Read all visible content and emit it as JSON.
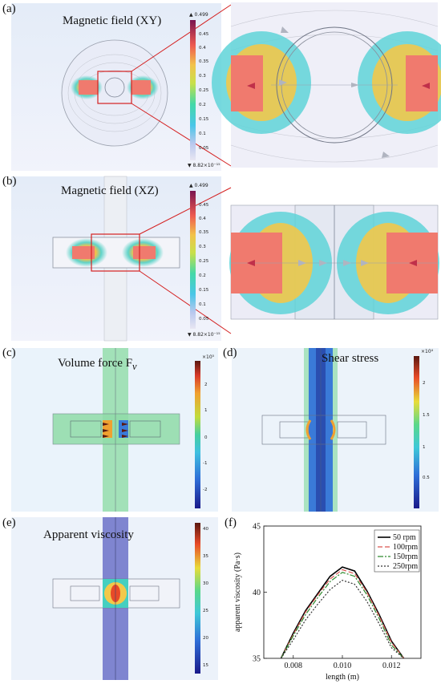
{
  "panels": {
    "a": {
      "label": "(a)",
      "title": "Magnetic field (XY)",
      "colorbar": {
        "max_label": "▲ 0.499",
        "min_label": "▼ 8.82×10⁻¹⁵",
        "ticks": [
          "0.45",
          "0.4",
          "0.35",
          "0.3",
          "0.25",
          "0.2",
          "0.15",
          "0.1",
          "0.05"
        ]
      }
    },
    "b": {
      "label": "(b)",
      "title": "Magnetic field (XZ)",
      "colorbar": {
        "max_label": "▲ 0.499",
        "min_label": "▼ 8.82×10⁻¹⁵",
        "ticks": [
          "0.45",
          "0.4",
          "0.35",
          "0.3",
          "0.25",
          "0.2",
          "0.15",
          "0.1",
          "0.05"
        ]
      }
    },
    "c": {
      "label": "(c)",
      "title": "Volume force F",
      "title_sub": "v",
      "colorbar": {
        "exp_label": "×10⁵",
        "ticks": [
          "2",
          "1",
          "0",
          "-1",
          "-2"
        ]
      }
    },
    "d": {
      "label": "(d)",
      "title": "Shear stress",
      "colorbar": {
        "exp_label": "×10⁴",
        "ticks": [
          "2",
          "1.5",
          "1",
          "0.5"
        ]
      }
    },
    "e": {
      "label": "(e)",
      "title": "Apparent viscosity",
      "colorbar": {
        "ticks": [
          "40",
          "35",
          "30",
          "25",
          "20",
          "15"
        ]
      }
    },
    "f": {
      "label": "(f)"
    }
  },
  "chart_data": {
    "type": "line",
    "xlabel": "length (m)",
    "ylabel": "apparent viscosity (Pa·s)",
    "xlim": [
      0.0068,
      0.0132
    ],
    "ylim": [
      35,
      45
    ],
    "xticks": [
      "0.008",
      "0.010",
      "0.012"
    ],
    "yticks": [
      "35",
      "40",
      "45"
    ],
    "legend_position": "top-right",
    "series": [
      {
        "name": "50  rpm",
        "color": "#000000",
        "dash": "solid",
        "x": [
          0.0075,
          0.008,
          0.0085,
          0.009,
          0.0095,
          0.01,
          0.0105,
          0.011,
          0.0115,
          0.012,
          0.0125
        ],
        "y": [
          35.0,
          36.9,
          38.6,
          39.9,
          41.2,
          41.9,
          41.6,
          40.1,
          38.3,
          36.3,
          35.0
        ]
      },
      {
        "name": "100rpm",
        "color": "#d9534f",
        "dash": "dashed",
        "x": [
          0.0075,
          0.008,
          0.0085,
          0.009,
          0.0095,
          0.01,
          0.0105,
          0.011,
          0.0115,
          0.012,
          0.0125
        ],
        "y": [
          35.0,
          36.8,
          38.5,
          39.8,
          41.0,
          41.7,
          41.4,
          40.0,
          38.2,
          36.2,
          35.0
        ]
      },
      {
        "name": "150rpm",
        "color": "#2e8b2e",
        "dash": "dashdot",
        "x": [
          0.0075,
          0.008,
          0.0085,
          0.009,
          0.0095,
          0.01,
          0.0105,
          0.011,
          0.0115,
          0.012,
          0.0125
        ],
        "y": [
          35.0,
          36.7,
          38.3,
          39.6,
          40.8,
          41.5,
          41.2,
          39.8,
          38.0,
          36.0,
          35.0
        ]
      },
      {
        "name": "250rpm",
        "color": "#333333",
        "dash": "dotted",
        "x": [
          0.0075,
          0.008,
          0.0085,
          0.009,
          0.0095,
          0.01,
          0.0105,
          0.011,
          0.0115,
          0.012,
          0.0125
        ],
        "y": [
          35.0,
          36.4,
          37.9,
          39.1,
          40.2,
          40.9,
          40.6,
          39.3,
          37.6,
          35.8,
          35.0
        ]
      }
    ]
  }
}
